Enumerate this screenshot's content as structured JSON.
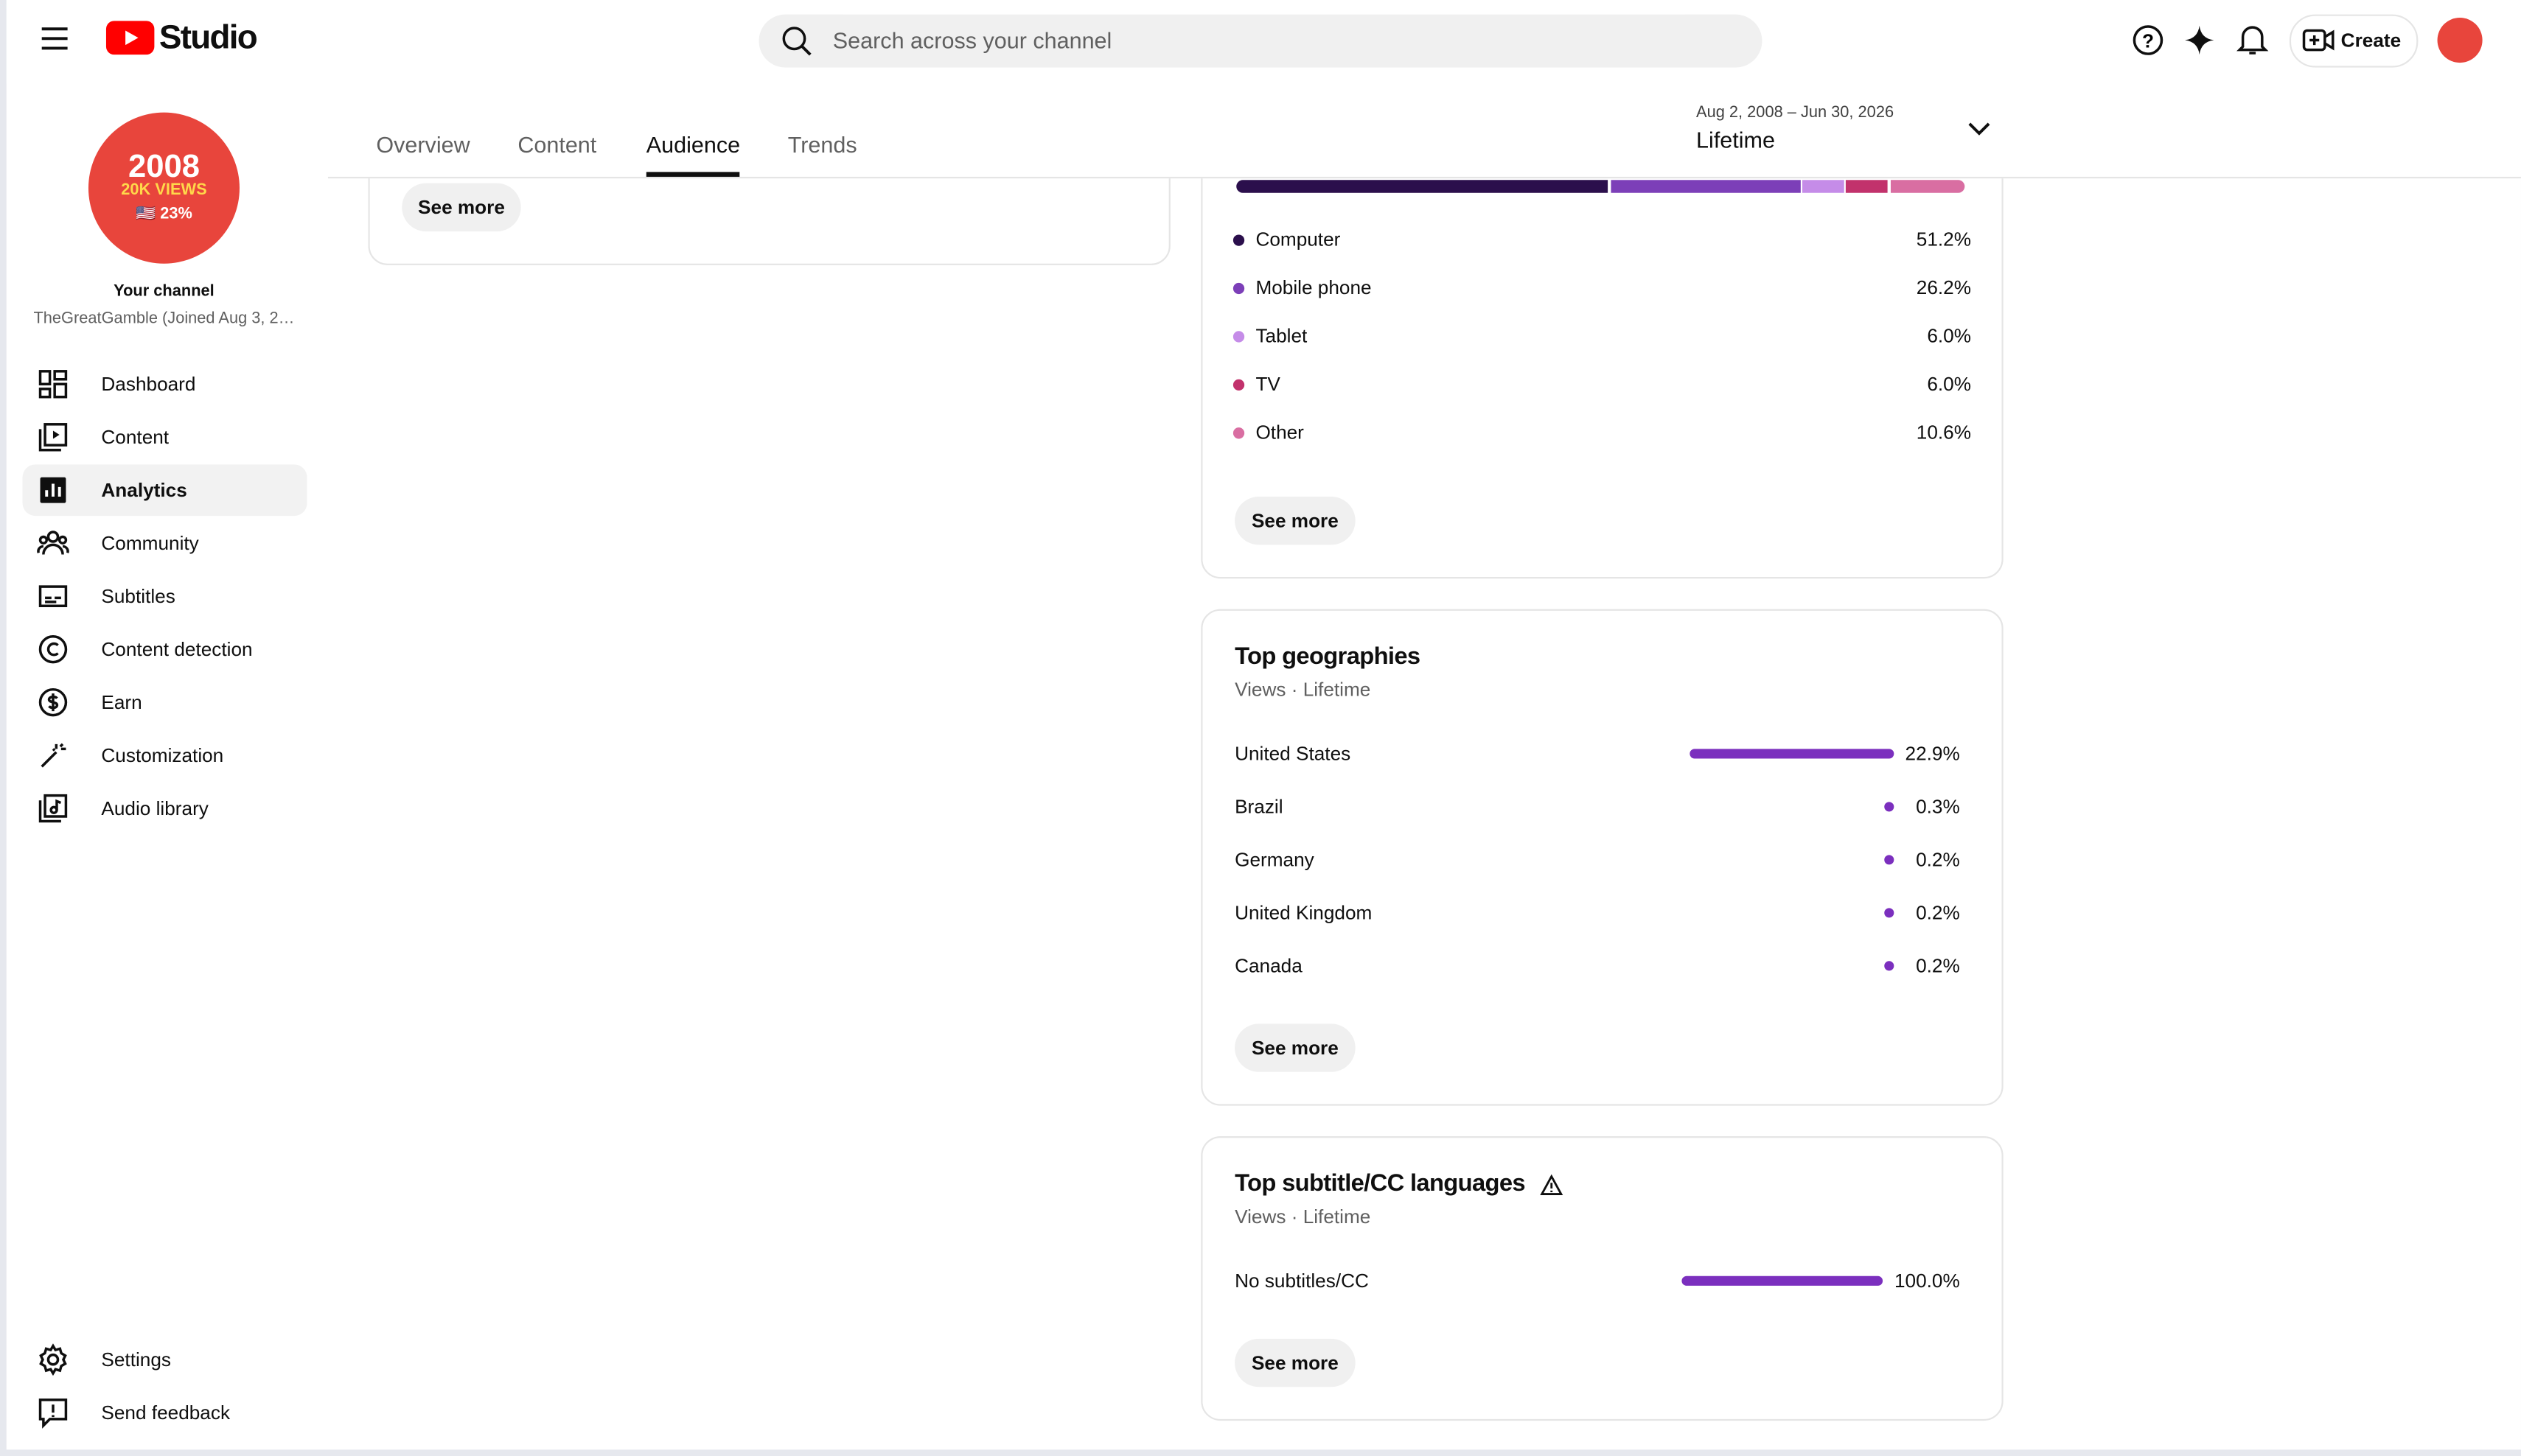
{
  "header": {
    "logo": "Studio",
    "search_placeholder": "Search across your channel",
    "create": "Create"
  },
  "channel": {
    "avatar_year": "2008",
    "avatar_views": "20K VIEWS",
    "avatar_share": "🇺🇸 23%",
    "title": "Your channel",
    "name": "TheGreatGamble (Joined Aug 3, 2…"
  },
  "nav": [
    "Dashboard",
    "Content",
    "Analytics",
    "Community",
    "Subtitles",
    "Content detection",
    "Earn",
    "Customization",
    "Audio library"
  ],
  "nav_active": 2,
  "nav_bottom": [
    "Settings",
    "Send feedback"
  ],
  "tabs": [
    "Overview",
    "Content",
    "Audience",
    "Trends"
  ],
  "tab_active": 2,
  "date_range": {
    "range": "Aug 2, 2008 – Jun 30, 2026",
    "period": "Lifetime"
  },
  "left_card": {
    "see_more": "See more"
  },
  "devices": {
    "categories": [
      "Computer",
      "Mobile phone",
      "Tablet",
      "TV",
      "Other"
    ],
    "values": [
      51.2,
      26.2,
      6.0,
      6.0,
      10.6
    ],
    "value_labels": [
      "51.2%",
      "26.2%",
      "6.0%",
      "6.0%",
      "10.6%"
    ],
    "colors": [
      "#2b0f4c",
      "#7c3fb8",
      "#c58ce8",
      "#c2326c",
      "#d96ea2"
    ],
    "see_more": "See more"
  },
  "geographies": {
    "title": "Top geographies",
    "subtitle": "Views · Lifetime",
    "categories": [
      "United States",
      "Brazil",
      "Germany",
      "United Kingdom",
      "Canada"
    ],
    "values": [
      22.9,
      0.3,
      0.2,
      0.2,
      0.2
    ],
    "value_labels": [
      "22.9%",
      "0.3%",
      "0.2%",
      "0.2%",
      "0.2%"
    ],
    "color": "#7b2fbe",
    "see_more": "See more"
  },
  "subtitles": {
    "title": "Top subtitle/CC languages",
    "subtitle": "Views · Lifetime",
    "categories": [
      "No subtitles/CC"
    ],
    "values": [
      100.0
    ],
    "value_labels": [
      "100.0%"
    ],
    "color": "#7b2fbe",
    "see_more": "See more"
  }
}
